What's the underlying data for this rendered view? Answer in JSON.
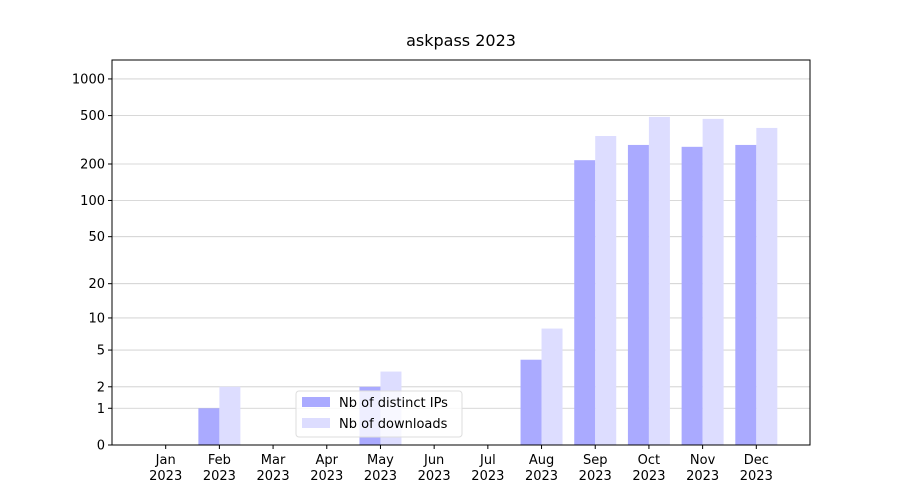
{
  "chart_data": {
    "type": "bar",
    "title": "askpass 2023",
    "scale": "log1p",
    "categories": [
      "Jan\n2023",
      "Feb\n2023",
      "Mar\n2023",
      "Apr\n2023",
      "May\n2023",
      "Jun\n2023",
      "Jul\n2023",
      "Aug\n2023",
      "Sep\n2023",
      "Oct\n2023",
      "Nov\n2023",
      "Dec\n2023"
    ],
    "series": [
      {
        "name": "Nb of distinct IPs",
        "color": "#aaaaff",
        "values": [
          0,
          1,
          0,
          0,
          2,
          0,
          0,
          4,
          215,
          287,
          277,
          287
        ]
      },
      {
        "name": "Nb of downloads",
        "color": "#ddddff",
        "values": [
          0,
          2,
          0,
          0,
          3,
          0,
          0,
          8,
          340,
          488,
          470,
          396
        ]
      }
    ],
    "ylim": [
      0,
      1430
    ],
    "yticks": [
      0,
      1,
      2,
      5,
      10,
      20,
      50,
      100,
      200,
      500,
      1000
    ],
    "grid": true,
    "legend": "lower center"
  }
}
